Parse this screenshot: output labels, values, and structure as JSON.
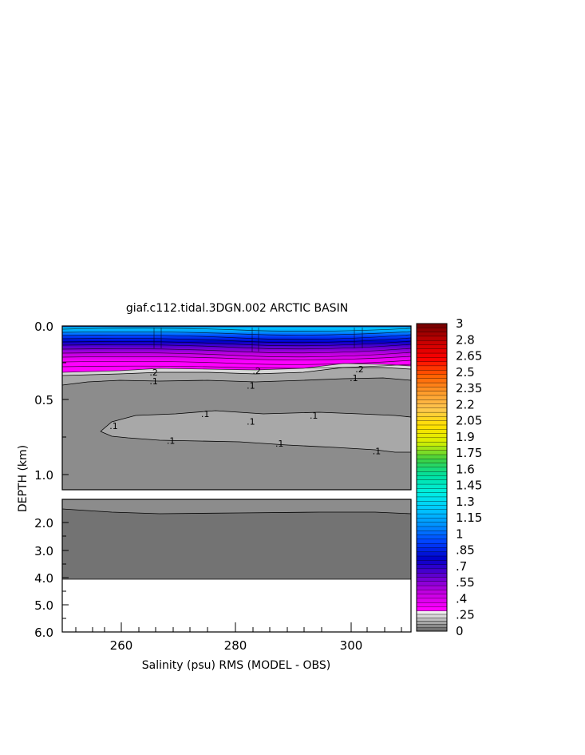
{
  "chart_data": {
    "type": "heatmap",
    "title": "giaf.c112.tidal.3DGN.002 ARCTIC BASIN",
    "xlabel": "Salinity (psu) RMS (MODEL - OBS)",
    "ylabel": "DEPTH (km)",
    "x_range": [
      250,
      311
    ],
    "x_ticks": [
      "260",
      "280",
      "300"
    ],
    "upper_panel": {
      "depth_range_km": [
        0.0,
        1.1
      ],
      "y_ticks": [
        "0.0",
        "0.5",
        "1.0"
      ]
    },
    "lower_panel": {
      "depth_range_km": [
        1.1,
        6.0
      ],
      "y_ticks": [
        "2.0",
        "3.0",
        "4.0",
        "5.0",
        "6.0"
      ],
      "no_data_below_km": 4.0
    },
    "contour_labels": [
      {
        "text": ".1",
        "x": 259,
        "depth": 0.67
      },
      {
        "text": ".1",
        "x": 269,
        "depth": 0.77
      },
      {
        "text": ".1",
        "x": 266,
        "depth": 0.37
      },
      {
        "text": ".1",
        "x": 275,
        "depth": 0.59
      },
      {
        "text": ".1",
        "x": 283,
        "depth": 0.4
      },
      {
        "text": ".1",
        "x": 283,
        "depth": 0.64
      },
      {
        "text": ".1",
        "x": 288,
        "depth": 0.79
      },
      {
        "text": ".1",
        "x": 294,
        "depth": 0.6
      },
      {
        "text": ".1",
        "x": 301,
        "depth": 0.35
      },
      {
        "text": ".1",
        "x": 305,
        "depth": 0.84
      },
      {
        "text": ".2",
        "x": 266,
        "depth": 0.31
      },
      {
        "text": ".2",
        "x": 284,
        "depth": 0.3
      },
      {
        "text": ".2",
        "x": 302,
        "depth": 0.29
      }
    ],
    "colorbar": {
      "labels": [
        "3",
        "2.8",
        "2.65",
        "2.5",
        "2.35",
        "2.2",
        "2.05",
        "1.9",
        "1.75",
        "1.6",
        "1.45",
        "1.3",
        "1.15",
        "1",
        ".85",
        ".7",
        ".55",
        ".4",
        ".25",
        "0"
      ],
      "color_stops": [
        "#7a0000",
        "#c80000",
        "#ff0000",
        "#ff6000",
        "#ff9a2a",
        "#ffc850",
        "#ffe000",
        "#d8f000",
        "#40d040",
        "#00e0a0",
        "#00f0e0",
        "#00c8ff",
        "#0090ff",
        "#0040ff",
        "#0000c8",
        "#6000d0",
        "#c000e0",
        "#ff00ff"
      ],
      "gray_levels": [
        "#f0f0f0",
        "#d8d8d8",
        "#bebebe",
        "#a6a6a6",
        "#8c8c8c",
        "#737373"
      ]
    },
    "colors": {
      "band_0_0p1": "#8c8c8c",
      "band_0p1_0p2": "#a8a8a8",
      "deep_band": "#737373",
      "pink": "#ff00ff",
      "magenta": "#cc00e6",
      "purple": "#6a00d8",
      "blue": "#0000c8",
      "cyan": "#00b0ff"
    }
  }
}
